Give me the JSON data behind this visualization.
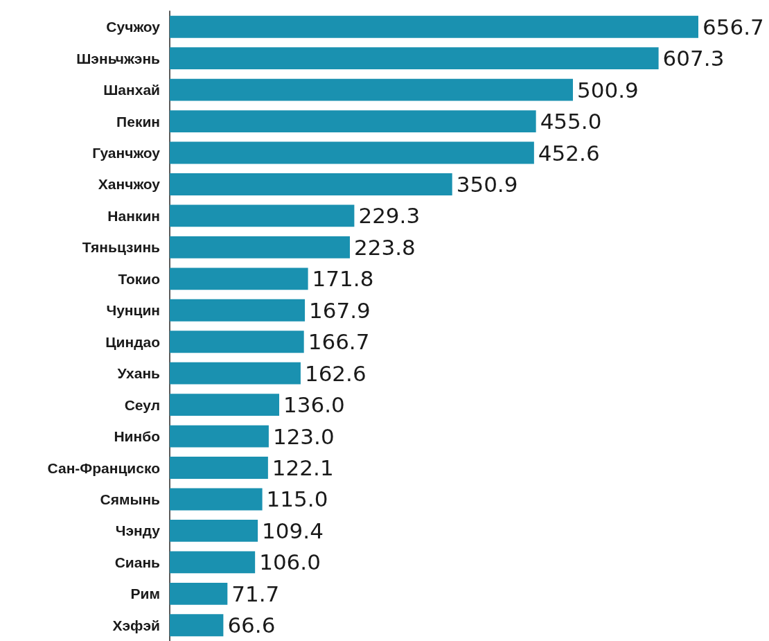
{
  "chart_data": {
    "type": "bar",
    "orientation": "horizontal",
    "categories": [
      "Сучжоу",
      "Шэньчжэнь",
      "Шанхай",
      "Пекин",
      "Гуанчжоу",
      "Ханчжоу",
      "Нанкин",
      "Тяньцзинь",
      "Токио",
      "Чунцин",
      "Циндао",
      "Ухань",
      "Сеул",
      "Нинбо",
      "Сан-Франциско",
      "Сямынь",
      "Чэнду",
      "Сиань",
      "Рим",
      "Хэфэй"
    ],
    "values": [
      656.7,
      607.3,
      500.9,
      455.0,
      452.6,
      350.9,
      229.3,
      223.8,
      171.8,
      167.9,
      166.7,
      162.6,
      136.0,
      123.0,
      122.1,
      115.0,
      109.4,
      106.0,
      71.7,
      66.6
    ],
    "value_labels": [
      "656.7",
      "607.3",
      "500.9",
      "455.0",
      "452.6",
      "350.9",
      "229.3",
      "223.8",
      "171.8",
      "167.9",
      "166.7",
      "162.6",
      "136.0",
      "123.0",
      "122.1",
      "115.0",
      "109.4",
      "106.0",
      "71.7",
      "66.6"
    ],
    "color": "#1a91b0"
  }
}
